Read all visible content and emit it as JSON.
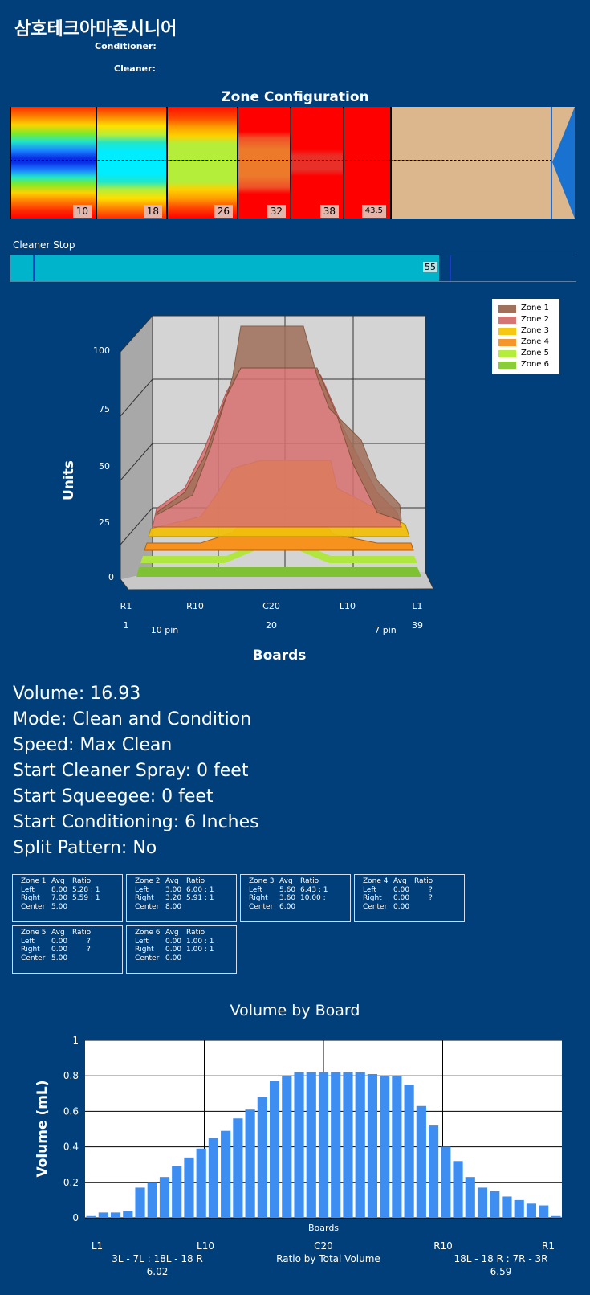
{
  "header": {
    "title": "삼호테크아마존시니어",
    "conditioner_label": "Conditioner:",
    "cleaner_label": "Cleaner:"
  },
  "zone_configuration": {
    "title": "Zone Configuration",
    "zones": [
      {
        "value": "10"
      },
      {
        "value": "18"
      },
      {
        "value": "26"
      },
      {
        "value": "32"
      },
      {
        "value": "38"
      },
      {
        "value": "43.5"
      }
    ]
  },
  "cleaner_stop": {
    "label": "Cleaner Stop",
    "value": "55",
    "fraction": 0.758
  },
  "stats": {
    "volume": "Volume: 16.93",
    "mode": "Mode: Clean and Condition",
    "speed": "Speed: Max Clean",
    "start_cleaner_spray": "Start Cleaner Spray: 0 feet",
    "start_squeegee": "Start Squeegee: 0 feet",
    "start_conditioning": "Start Conditioning: 6 Inches",
    "split_pattern": "Split Pattern: No"
  },
  "zone_boxes": [
    {
      "name": "Zone 1",
      "left": "8.00",
      "left_ratio": "5.28 : 1",
      "right": "7.00",
      "right_ratio": "5.59 : 1",
      "center": "5.00"
    },
    {
      "name": "Zone 2",
      "left": "3.00",
      "left_ratio": "6.00 : 1",
      "right": "3.20",
      "right_ratio": "5.91 : 1",
      "center": "8.00"
    },
    {
      "name": "Zone 3",
      "left": "5.60",
      "left_ratio": "6.43 : 1",
      "right": "3.60",
      "right_ratio": "10.00 :",
      "center": "6.00"
    },
    {
      "name": "Zone 4",
      "left": "0.00",
      "left_ratio": "?",
      "right": "0.00",
      "right_ratio": "?",
      "center": "0.00"
    },
    {
      "name": "Zone 5",
      "left": "0.00",
      "left_ratio": "?",
      "right": "0.00",
      "right_ratio": "?",
      "center": "5.00"
    },
    {
      "name": "Zone 6",
      "left": "0.00",
      "left_ratio": "1.00 : 1",
      "right": "0.00",
      "right_ratio": "1.00 : 1",
      "center": "0.00"
    }
  ],
  "zone_box_headers": {
    "avg": "Avg",
    "ratio": "Ratio",
    "left": "Left",
    "right": "Right",
    "center": "Center"
  },
  "chart_data": [
    {
      "type": "area",
      "ylabel": "Units",
      "xlabel": "Boards",
      "ylim": [
        0,
        100
      ],
      "yticks": [
        "0",
        "25",
        "50",
        "75",
        "100"
      ],
      "xticks_top": [
        "R1",
        "R10",
        "C20",
        "L10",
        "L1"
      ],
      "xticks_bottom": [
        "1",
        "20",
        "39"
      ],
      "pin_labels": [
        "10 pin",
        "7 pin"
      ],
      "legend": "top-right",
      "series": [
        {
          "name": "Zone 1",
          "color": "#a0705a"
        },
        {
          "name": "Zone 2",
          "color": "#d57676"
        },
        {
          "name": "Zone 3",
          "color": "#f5c814"
        },
        {
          "name": "Zone 4",
          "color": "#f5962a"
        },
        {
          "name": "Zone 5",
          "color": "#b4ee3a"
        },
        {
          "name": "Zone 6",
          "color": "#8acd38"
        }
      ]
    },
    {
      "type": "bar",
      "title": "Volume by Board",
      "xlabel": "Boards",
      "ylabel": "Volume (mL)",
      "ylim": [
        0,
        1
      ],
      "yticks": [
        "0",
        "0.2",
        "0.4",
        "0.6",
        "0.8",
        "1"
      ],
      "xticks": [
        "L1",
        "L10",
        "C20",
        "R10",
        "R1"
      ],
      "values": [
        0.01,
        0.03,
        0.03,
        0.04,
        0.17,
        0.2,
        0.23,
        0.29,
        0.34,
        0.39,
        0.45,
        0.49,
        0.56,
        0.61,
        0.68,
        0.77,
        0.8,
        0.82,
        0.82,
        0.82,
        0.82,
        0.82,
        0.82,
        0.81,
        0.8,
        0.8,
        0.75,
        0.63,
        0.52,
        0.4,
        0.32,
        0.23,
        0.17,
        0.15,
        0.12,
        0.1,
        0.08,
        0.07,
        0.01
      ],
      "bar_color": "#3d8ef0",
      "footer": {
        "left_label": "3L - 7L : 18L - 18 R",
        "left_value": "6.02",
        "center_label": "Ratio by Total Volume",
        "right_label": "18L - 18 R : 7R - 3R",
        "right_value": "6.59"
      }
    }
  ]
}
